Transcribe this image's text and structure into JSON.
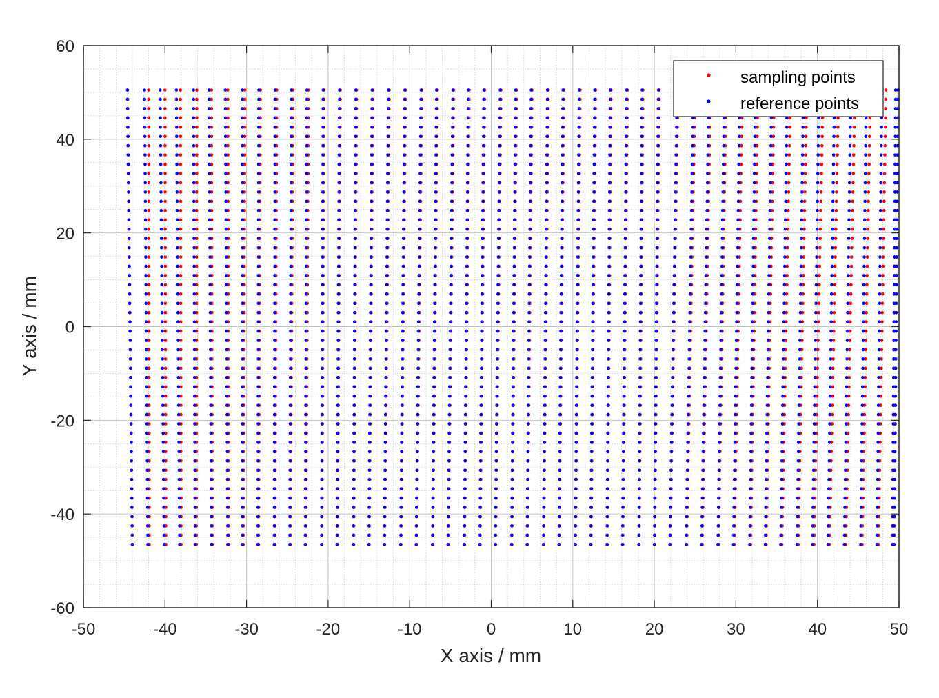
{
  "chart_data": {
    "type": "scatter",
    "title": "",
    "xlabel": "X axis / mm",
    "ylabel": "Y axis / mm",
    "xlim": [
      -50,
      50
    ],
    "ylim": [
      -60,
      60
    ],
    "xticks": [
      -50,
      -40,
      -30,
      -20,
      -10,
      0,
      10,
      20,
      30,
      40,
      50
    ],
    "yticks": [
      -60,
      -40,
      -20,
      0,
      20,
      40,
      60
    ],
    "xtick_labels": [
      "-50",
      "-40",
      "-30",
      "-20",
      "-10",
      "0",
      "10",
      "20",
      "30",
      "40",
      "50"
    ],
    "ytick_labels": [
      "-60",
      "-40",
      "-20",
      "0",
      "20",
      "40",
      "60"
    ],
    "grid": true,
    "minor_grid": true,
    "legend": {
      "position": "top-right"
    },
    "grid_description": {
      "columns": 50,
      "rows_per_column": 50,
      "y_bottom": -46.5,
      "y_top": 50.5,
      "column_x_top": [
        -44.6,
        -42.5,
        -40.6,
        -38.6,
        -36.5,
        -34.6,
        -32.6,
        -30.5,
        -28.5,
        -26.5,
        -24.5,
        -22.6,
        -20.6,
        -18.6,
        -16.6,
        -14.6,
        -12.6,
        -10.6,
        -8.6,
        -6.7,
        -4.7,
        -2.8,
        -0.9,
        1.1,
        3.0,
        4.9,
        6.9,
        8.8,
        10.8,
        12.7,
        14.6,
        16.6,
        18.5,
        20.5,
        22.8,
        24.8,
        26.7,
        28.6,
        30.5,
        32.4,
        34.4,
        36.3,
        38.3,
        40.2,
        42.1,
        44.1,
        46.0,
        47.9,
        49.6,
        49.9
      ],
      "column_x_bottom": [
        -44.0,
        -42.1,
        -40.1,
        -38.2,
        -36.3,
        -34.3,
        -32.3,
        -30.5,
        -28.6,
        -26.6,
        -24.7,
        -22.8,
        -20.8,
        -18.9,
        -16.9,
        -15.0,
        -13.1,
        -11.1,
        -9.2,
        -7.2,
        -5.3,
        -3.3,
        -1.4,
        0.5,
        2.5,
        4.4,
        6.4,
        8.3,
        10.3,
        12.2,
        14.2,
        16.1,
        18.1,
        20.0,
        21.9,
        23.9,
        25.8,
        27.8,
        29.7,
        31.7,
        33.6,
        35.5,
        37.5,
        39.4,
        41.3,
        43.3,
        45.3,
        47.3,
        49.2,
        49.4
      ],
      "sampling_offset_top": [
        0.0,
        0.5,
        0.6,
        0.5,
        0.4,
        0.3,
        0.3,
        0.3,
        0.2,
        0.2,
        0.2,
        0.2,
        0.1,
        0.1,
        0.1,
        0.1,
        0.1,
        0.1,
        0.1,
        0.1,
        0.1,
        0.1,
        0.1,
        0.1,
        0.1,
        0.1,
        0.1,
        0.1,
        0.1,
        0.1,
        0.1,
        0.1,
        0.1,
        0.1,
        0.1,
        0.2,
        0.2,
        0.2,
        0.3,
        0.3,
        0.3,
        0.4,
        0.4,
        0.5,
        0.5,
        0.5,
        0.5,
        0.5,
        0.0,
        0.0
      ]
    },
    "series": [
      {
        "name": "sampling points",
        "color": "#ff0000"
      },
      {
        "name": "reference points",
        "color": "#0000ff"
      }
    ]
  }
}
